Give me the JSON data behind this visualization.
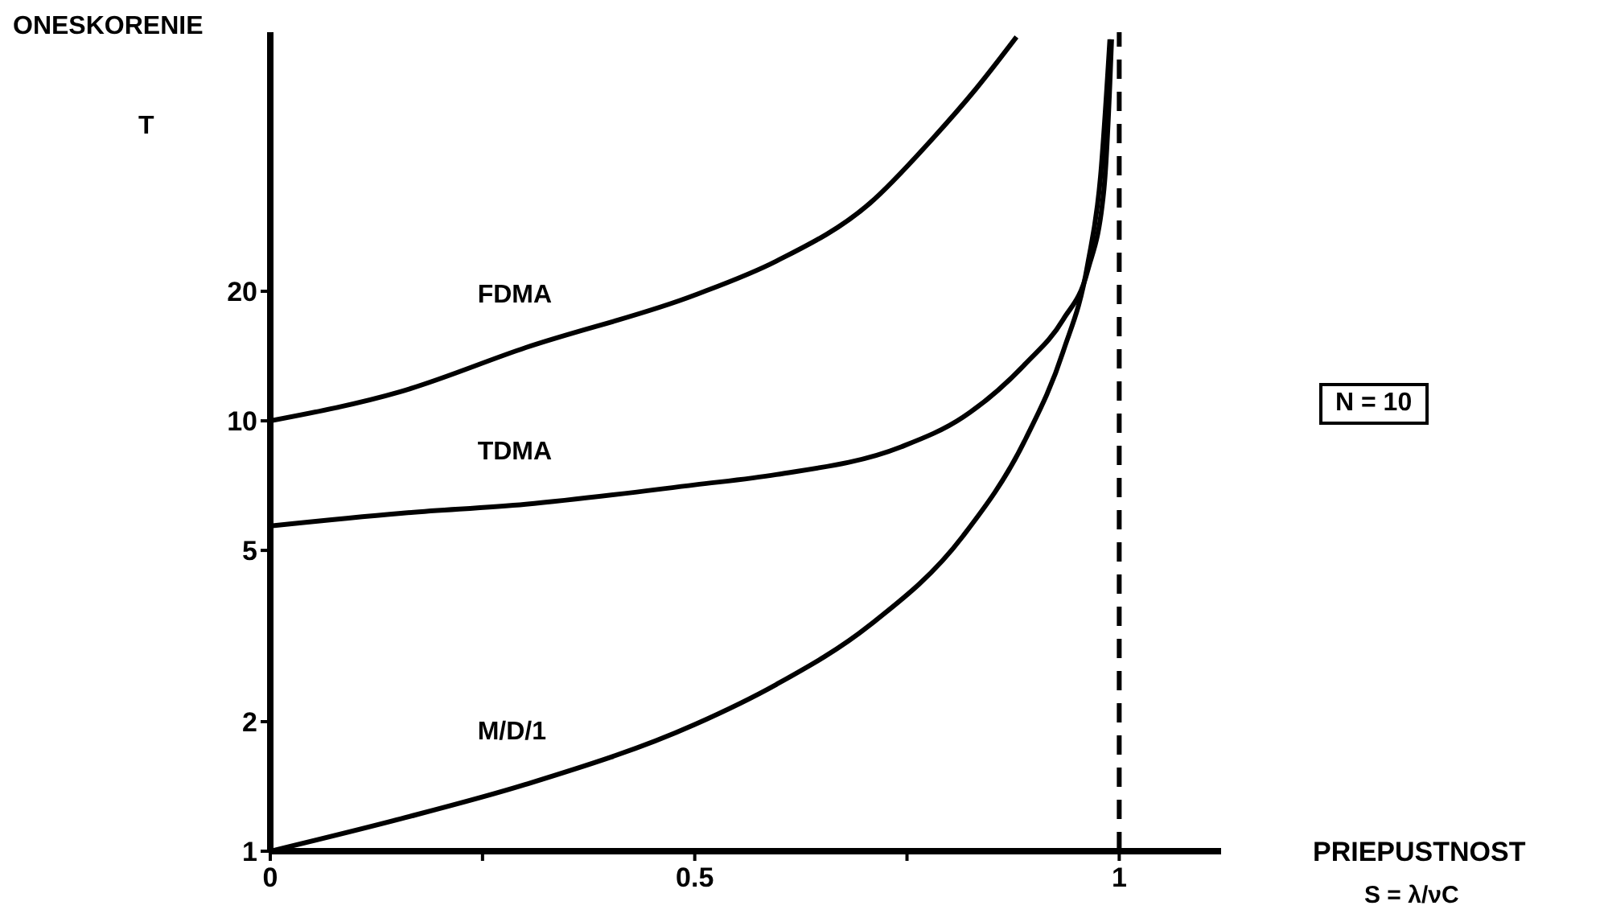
{
  "chart_data": {
    "type": "line",
    "xlabel": "PRIEPUSTNOST",
    "ylabel": "ONESKORENIE",
    "annotations": [
      "T",
      "N = 10",
      "S = λ/νC"
    ],
    "log": "y",
    "xlim": [
      0,
      1.12
    ],
    "xticks": [
      0,
      {
        "value": 0.25,
        "label": null
      },
      {
        "value": 0.5,
        "label": "0.5"
      },
      {
        "value": 0.75,
        "label": null
      },
      1
    ],
    "ylim": [
      1,
      80
    ],
    "yticks": [
      1,
      2,
      5,
      10,
      20
    ],
    "ref_lines": [
      {
        "axis": "x",
        "value": 1,
        "line_style": "dashed",
        "color": "#000000"
      }
    ],
    "series": [
      {
        "name": "FDMA",
        "color": "#000000",
        "x": [
          0,
          0.154,
          0.301,
          0.5,
          0.596,
          0.706,
          0.779,
          0.831,
          0.879
        ],
        "values": [
          10,
          11.7,
          14.8,
          19.6,
          23.5,
          32,
          45,
          59,
          78
        ]
      },
      {
        "name": "TDMA",
        "color": "#000000",
        "x": [
          0,
          0.154,
          0.301,
          0.5,
          0.596,
          0.743,
          0.816,
          0.89,
          0.934,
          0.963,
          0.982,
          0.989,
          0.991
        ],
        "values": [
          5.7,
          6.1,
          6.4,
          7.1,
          7.5,
          8.7,
          10.2,
          13.6,
          17.2,
          22.4,
          34.5,
          61,
          77
        ]
      },
      {
        "name": "M/D/1",
        "color": "#000000",
        "x": [
          0,
          0.154,
          0.301,
          0.5,
          0.596,
          0.706,
          0.816,
          0.89,
          0.934,
          0.963,
          0.978,
          0.989
        ],
        "values": [
          1,
          1.19,
          1.43,
          1.97,
          2.44,
          3.35,
          5.4,
          9.1,
          14.5,
          23.2,
          37,
          77
        ]
      }
    ]
  }
}
